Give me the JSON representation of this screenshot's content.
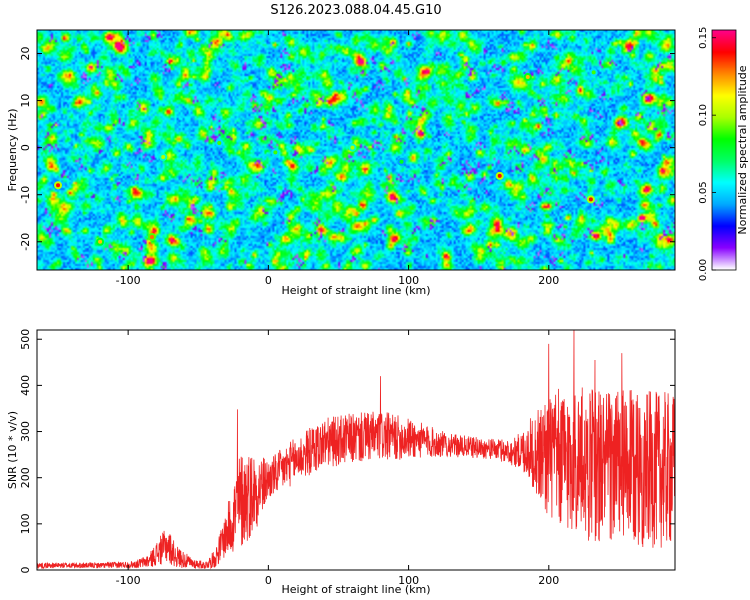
{
  "figure": {
    "title": "S126.2023.088.04.45.G10"
  },
  "chart_data": [
    {
      "type": "heatmap",
      "xlabel": "Height of straight line (km)",
      "ylabel": "Frequency (Hz)",
      "xlim": [
        -165,
        290
      ],
      "ylim": [
        -26,
        25
      ],
      "xticks": [
        -100,
        0,
        100,
        200
      ],
      "yticks": [
        -20,
        -10,
        0,
        10,
        20
      ],
      "colorbar": {
        "label": "Normalized spectral amplitude",
        "range": [
          0.0,
          0.155
        ],
        "ticks": [
          "0.00",
          "0.05",
          "0.10",
          "0.15"
        ],
        "tick_values": [
          0.0,
          0.05,
          0.1,
          0.15
        ],
        "colormap": [
          "#ffffff",
          "#8800ff",
          "#0000ff",
          "#00aaff",
          "#00ffff",
          "#00ff66",
          "#00ff00",
          "#aaff00",
          "#ffff00",
          "#ff8800",
          "#ff0000",
          "#ff0088"
        ]
      },
      "field_description_note": "",
      "hotspots": [
        {
          "x": -150,
          "y": -8,
          "value": 0.14
        },
        {
          "x": -120,
          "y": -20,
          "value": 0.12
        },
        {
          "x": -83,
          "y": -19,
          "value": 0.13
        },
        {
          "x": -75,
          "y": -2,
          "value": 0.1
        },
        {
          "x": -35,
          "y": 1,
          "value": 0.09
        },
        {
          "x": 5,
          "y": -1,
          "value": 0.09
        },
        {
          "x": 60,
          "y": 0,
          "value": 0.1
        },
        {
          "x": 95,
          "y": -3,
          "value": 0.08
        },
        {
          "x": 165,
          "y": -6,
          "value": 0.14
        },
        {
          "x": 185,
          "y": 15,
          "value": 0.12
        },
        {
          "x": 230,
          "y": -11,
          "value": 0.14
        },
        {
          "x": 232,
          "y": 16,
          "value": 0.09
        }
      ]
    },
    {
      "type": "line",
      "xlabel": "Height of straight line (km)",
      "ylabel": "SNR (10 * v/v)",
      "xlim": [
        -165,
        290
      ],
      "ylim": [
        0,
        520
      ],
      "xticks": [
        -100,
        0,
        100,
        200
      ],
      "yticks": [
        0,
        100,
        200,
        300,
        400,
        500
      ],
      "series": [
        {
          "color": "#ee2222",
          "envelope": [
            {
              "x": -165,
              "mean": 10,
              "amp": 6
            },
            {
              "x": -120,
              "mean": 10,
              "amp": 6
            },
            {
              "x": -95,
              "mean": 12,
              "amp": 8
            },
            {
              "x": -85,
              "mean": 20,
              "amp": 15
            },
            {
              "x": -78,
              "mean": 40,
              "amp": 30
            },
            {
              "x": -72,
              "mean": 55,
              "amp": 40
            },
            {
              "x": -66,
              "mean": 30,
              "amp": 25
            },
            {
              "x": -55,
              "mean": 15,
              "amp": 12
            },
            {
              "x": -45,
              "mean": 10,
              "amp": 8
            },
            {
              "x": -38,
              "mean": 25,
              "amp": 20
            },
            {
              "x": -30,
              "mean": 80,
              "amp": 50
            },
            {
              "x": -20,
              "mean": 150,
              "amp": 110
            },
            {
              "x": -10,
              "mean": 170,
              "amp": 90
            },
            {
              "x": 0,
              "mean": 195,
              "amp": 45
            },
            {
              "x": 20,
              "mean": 240,
              "amp": 50
            },
            {
              "x": 40,
              "mean": 275,
              "amp": 55
            },
            {
              "x": 60,
              "mean": 285,
              "amp": 55
            },
            {
              "x": 80,
              "mean": 290,
              "amp": 55
            },
            {
              "x": 100,
              "mean": 285,
              "amp": 45
            },
            {
              "x": 130,
              "mean": 270,
              "amp": 25
            },
            {
              "x": 160,
              "mean": 262,
              "amp": 22
            },
            {
              "x": 175,
              "mean": 255,
              "amp": 30
            },
            {
              "x": 185,
              "mean": 260,
              "amp": 60
            },
            {
              "x": 195,
              "mean": 250,
              "amp": 120
            },
            {
              "x": 210,
              "mean": 240,
              "amp": 160
            },
            {
              "x": 230,
              "mean": 230,
              "amp": 170
            },
            {
              "x": 260,
              "mean": 220,
              "amp": 170
            },
            {
              "x": 290,
              "mean": 215,
              "amp": 170
            }
          ],
          "peaks": [
            {
              "x": -22,
              "y": 348
            },
            {
              "x": 80,
              "y": 420
            },
            {
              "x": 200,
              "y": 490
            },
            {
              "x": 218,
              "y": 520
            },
            {
              "x": 233,
              "y": 455
            },
            {
              "x": 252,
              "y": 470
            }
          ]
        }
      ]
    }
  ]
}
